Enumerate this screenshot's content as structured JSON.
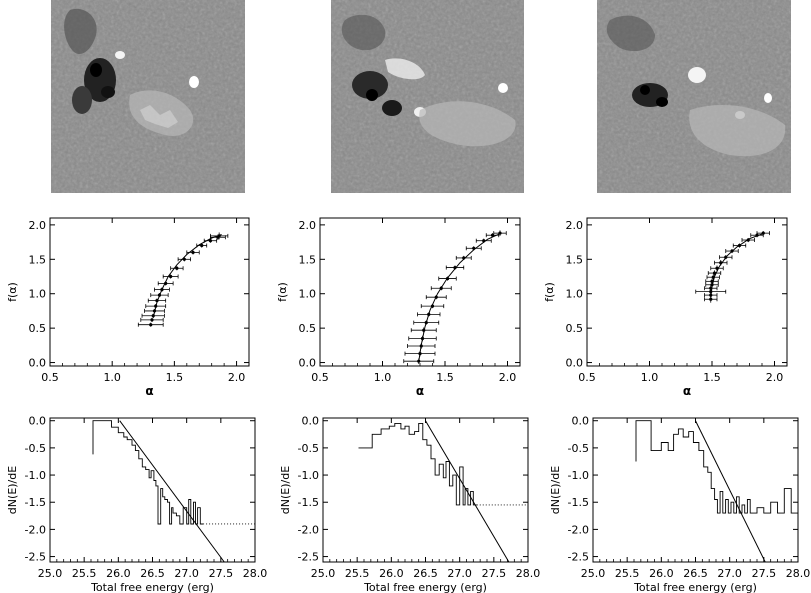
{
  "figure": {
    "column_count": 3,
    "magnetogram_colors": {
      "background": "#8a8a8a",
      "negative": "#0a0a0a",
      "positive": "#ffffff"
    }
  },
  "chart_data": [
    {
      "type": "scatter",
      "panel": "row2-col1",
      "xlabel": "α",
      "ylabel": "f(α)",
      "xlim": [
        0.5,
        2.1
      ],
      "ylim": [
        -0.05,
        2.1
      ],
      "xticks": [
        0.5,
        1.0,
        1.5,
        2.0
      ],
      "xtick_labels": [
        "0.5",
        "1.0",
        "1.5",
        "2.0"
      ],
      "yticks": [
        0.0,
        0.5,
        1.0,
        1.5,
        2.0
      ],
      "ytick_labels": [
        "0.0",
        "0.5",
        "1.0",
        "1.5",
        "2.0"
      ],
      "series": [
        {
          "x": [
            1.31,
            1.32,
            1.33,
            1.34,
            1.35,
            1.36,
            1.38,
            1.4,
            1.43,
            1.47,
            1.52,
            1.58,
            1.65,
            1.72,
            1.79,
            1.85,
            1.86
          ],
          "y": [
            0.55,
            0.62,
            0.68,
            0.75,
            0.82,
            0.9,
            0.98,
            1.06,
            1.15,
            1.25,
            1.37,
            1.5,
            1.6,
            1.7,
            1.77,
            1.82,
            1.84
          ],
          "xerr": [
            0.1,
            0.09,
            0.09,
            0.08,
            0.08,
            0.07,
            0.07,
            0.06,
            0.06,
            0.06,
            0.05,
            0.05,
            0.05,
            0.04,
            0.05,
            0.06,
            0.07
          ],
          "yerr": [
            0.03,
            0.03,
            0.03,
            0.03,
            0.03,
            0.03,
            0.03,
            0.03,
            0.03,
            0.03,
            0.03,
            0.03,
            0.03,
            0.03,
            0.03,
            0.04,
            0.05
          ]
        }
      ],
      "fit_curve": {
        "x": [
          1.33,
          1.36,
          1.4,
          1.45,
          1.52,
          1.6,
          1.7,
          1.8,
          1.88
        ],
        "y": [
          0.65,
          0.88,
          1.06,
          1.25,
          1.42,
          1.57,
          1.71,
          1.81,
          1.86
        ]
      }
    },
    {
      "type": "scatter",
      "panel": "row2-col2",
      "xlabel": "α",
      "ylabel": "f(α)",
      "xlim": [
        0.5,
        2.1
      ],
      "ylim": [
        -0.05,
        2.1
      ],
      "xticks": [
        0.5,
        1.0,
        1.5,
        2.0
      ],
      "xtick_labels": [
        "0.5",
        "1.0",
        "1.5",
        "2.0"
      ],
      "yticks": [
        0.0,
        0.5,
        1.0,
        1.5,
        2.0
      ],
      "ytick_labels": [
        "0.0",
        "0.5",
        "1.0",
        "1.5",
        "2.0"
      ],
      "series": [
        {
          "x": [
            1.29,
            1.3,
            1.31,
            1.32,
            1.33,
            1.35,
            1.37,
            1.4,
            1.43,
            1.47,
            1.52,
            1.58,
            1.65,
            1.73,
            1.81,
            1.88,
            1.94
          ],
          "y": [
            0.02,
            0.13,
            0.24,
            0.35,
            0.47,
            0.58,
            0.7,
            0.82,
            0.95,
            1.08,
            1.22,
            1.38,
            1.52,
            1.66,
            1.77,
            1.85,
            1.88
          ],
          "xerr": [
            0.12,
            0.12,
            0.11,
            0.11,
            0.1,
            0.1,
            0.09,
            0.09,
            0.08,
            0.08,
            0.07,
            0.07,
            0.06,
            0.06,
            0.06,
            0.05,
            0.05
          ],
          "yerr": [
            0.04,
            0.04,
            0.04,
            0.04,
            0.04,
            0.03,
            0.03,
            0.03,
            0.03,
            0.03,
            0.03,
            0.03,
            0.03,
            0.03,
            0.03,
            0.03,
            0.04
          ]
        }
      ],
      "fit_curve": {
        "x": [
          1.29,
          1.31,
          1.34,
          1.38,
          1.44,
          1.52,
          1.62,
          1.73,
          1.84,
          1.95
        ],
        "y": [
          0.02,
          0.26,
          0.52,
          0.76,
          1.0,
          1.23,
          1.45,
          1.64,
          1.79,
          1.88
        ]
      }
    },
    {
      "type": "scatter",
      "panel": "row2-col3",
      "xlabel": "α",
      "ylabel": "f(α)",
      "xlim": [
        0.5,
        2.1
      ],
      "ylim": [
        -0.05,
        2.1
      ],
      "xticks": [
        0.5,
        1.0,
        1.5,
        2.0
      ],
      "xtick_labels": [
        "0.5",
        "1.0",
        "1.5",
        "2.0"
      ],
      "yticks": [
        0.0,
        0.5,
        1.0,
        1.5,
        2.0
      ],
      "ytick_labels": [
        "0.0",
        "0.5",
        "1.0",
        "1.5",
        "2.0"
      ],
      "series": [
        {
          "x": [
            1.49,
            1.49,
            1.49,
            1.49,
            1.5,
            1.5,
            1.51,
            1.52,
            1.54,
            1.57,
            1.61,
            1.66,
            1.72,
            1.79,
            1.86,
            1.91
          ],
          "y": [
            0.92,
            0.98,
            1.03,
            1.08,
            1.13,
            1.18,
            1.24,
            1.3,
            1.37,
            1.45,
            1.53,
            1.62,
            1.7,
            1.78,
            1.85,
            1.88
          ],
          "xerr": [
            0.05,
            0.05,
            0.12,
            0.05,
            0.05,
            0.05,
            0.05,
            0.05,
            0.05,
            0.05,
            0.05,
            0.05,
            0.05,
            0.05,
            0.05,
            0.05
          ],
          "yerr": [
            0.05,
            0.05,
            0.05,
            0.05,
            0.04,
            0.04,
            0.04,
            0.04,
            0.04,
            0.04,
            0.03,
            0.03,
            0.03,
            0.03,
            0.03,
            0.03
          ]
        }
      ],
      "fit_curve": {
        "x": [
          1.49,
          1.5,
          1.52,
          1.56,
          1.62,
          1.7,
          1.8,
          1.92
        ],
        "y": [
          0.95,
          1.1,
          1.25,
          1.4,
          1.55,
          1.68,
          1.8,
          1.88
        ]
      }
    },
    {
      "type": "line",
      "panel": "row3-col1",
      "xlabel": "Total free energy (erg)",
      "ylabel": "dN(E)/dE",
      "xlim": [
        25.0,
        28.0
      ],
      "ylim": [
        -2.6,
        0.05
      ],
      "xticks": [
        25.0,
        25.5,
        26.0,
        26.5,
        27.0,
        27.5,
        28.0
      ],
      "xtick_labels": [
        "25.0",
        "25.5",
        "26.0",
        "26.5",
        "27.0",
        "27.5",
        "28.0"
      ],
      "yticks": [
        0.0,
        -0.5,
        -1.0,
        -1.5,
        -2.0,
        -2.5
      ],
      "ytick_labels": [
        "0.0",
        "-0.5",
        "-1.0",
        "-1.5",
        "-2.0",
        "-2.5"
      ],
      "histogram": {
        "x": [
          25.63,
          25.63,
          25.63,
          25.63,
          25.63,
          25.9,
          26.0,
          26.08,
          26.13,
          26.2,
          26.25,
          26.3,
          26.35,
          26.4,
          26.45,
          26.48,
          26.52,
          26.55,
          26.58,
          26.62,
          26.65,
          26.68,
          26.72,
          26.75,
          26.78,
          26.8,
          26.85,
          26.9,
          26.95,
          27.0,
          27.03,
          27.06,
          27.1,
          27.13,
          27.16,
          27.2,
          27.24
        ],
        "y": [
          -0.62,
          0.0,
          0.0,
          0.0,
          0.0,
          -0.12,
          -0.22,
          -0.3,
          -0.35,
          -0.45,
          -0.55,
          -0.7,
          -0.85,
          -0.9,
          -1.05,
          -0.92,
          -1.1,
          -1.2,
          -1.9,
          -1.25,
          -1.4,
          -1.45,
          -1.5,
          -1.9,
          -1.6,
          -1.7,
          -1.75,
          -1.9,
          -1.6,
          -1.9,
          -1.45,
          -1.9,
          -1.5,
          -1.9,
          -1.6,
          -1.9,
          -1.9
        ]
      },
      "dotted_level": {
        "x_start": 27.24,
        "x_end": 28.0,
        "y": -1.9
      },
      "fit_line": {
        "x": [
          26.02,
          27.55
        ],
        "y": [
          0.0,
          -2.6
        ]
      }
    },
    {
      "type": "line",
      "panel": "row3-col2",
      "xlabel": "Total free energy (erg)",
      "ylabel": "dN(E)/dE",
      "xlim": [
        25.0,
        28.0
      ],
      "ylim": [
        -2.6,
        0.05
      ],
      "xticks": [
        25.0,
        25.5,
        26.0,
        26.5,
        27.0,
        27.5,
        28.0
      ],
      "xtick_labels": [
        "25.0",
        "25.5",
        "26.0",
        "26.5",
        "27.0",
        "27.5",
        "28.0"
      ],
      "yticks": [
        0.0,
        -0.5,
        -1.0,
        -1.5,
        -2.0,
        -2.5
      ],
      "ytick_labels": [
        "0.0",
        "-0.5",
        "-1.0",
        "-1.5",
        "-2.0",
        "-2.5"
      ],
      "histogram": {
        "x": [
          25.52,
          25.72,
          25.85,
          25.97,
          26.05,
          26.14,
          26.2,
          26.26,
          26.34,
          26.4,
          26.46,
          26.52,
          26.58,
          26.64,
          26.7,
          26.76,
          26.8,
          26.85,
          26.9,
          26.95,
          27.0,
          27.05,
          27.08,
          27.12,
          27.16,
          27.2,
          27.25
        ],
        "y": [
          -0.5,
          -0.25,
          -0.15,
          -0.1,
          -0.05,
          -0.15,
          -0.1,
          -0.25,
          -0.2,
          -0.05,
          -0.35,
          -0.45,
          -0.7,
          -1.0,
          -0.8,
          -1.05,
          -0.75,
          -1.2,
          -1.0,
          -1.55,
          -0.85,
          -1.55,
          -1.25,
          -1.55,
          -1.3,
          -1.55,
          -1.55
        ]
      },
      "dotted_level": {
        "x_start": 27.25,
        "x_end": 28.0,
        "y": -1.55
      },
      "fit_line": {
        "x": [
          26.5,
          27.72
        ],
        "y": [
          0.0,
          -2.6
        ]
      }
    },
    {
      "type": "line",
      "panel": "row3-col3",
      "xlabel": "Total free energy (erg)",
      "ylabel": "dN(E)/dE",
      "xlim": [
        25.0,
        28.0
      ],
      "ylim": [
        -2.6,
        0.05
      ],
      "xticks": [
        25.0,
        25.5,
        26.0,
        26.5,
        27.0,
        27.5,
        28.0
      ],
      "xtick_labels": [
        "25.0",
        "25.5",
        "26.0",
        "26.5",
        "27.0",
        "27.5",
        "28.0"
      ],
      "yticks": [
        0.0,
        -0.5,
        -1.0,
        -1.5,
        -2.0,
        -2.5
      ],
      "ytick_labels": [
        "0.0",
        "-0.5",
        "-1.0",
        "-1.5",
        "-2.0",
        "-2.5"
      ],
      "histogram": {
        "x": [
          25.63,
          25.63,
          25.63,
          25.63,
          25.85,
          26.0,
          26.1,
          26.18,
          26.25,
          26.32,
          26.4,
          26.47,
          26.55,
          26.62,
          26.68,
          26.73,
          26.78,
          26.82,
          26.86,
          26.9,
          26.94,
          26.98,
          27.02,
          27.06,
          27.1,
          27.14,
          27.18,
          27.22,
          27.26,
          27.3,
          27.4,
          27.5,
          27.6,
          27.7,
          27.8,
          27.9,
          28.0
        ],
        "y": [
          -0.75,
          0.0,
          0.0,
          0.0,
          -0.55,
          -0.4,
          -0.55,
          -0.25,
          -0.15,
          -0.3,
          -0.2,
          -0.4,
          -0.55,
          -0.85,
          -0.95,
          -1.25,
          -1.45,
          -1.7,
          -1.3,
          -1.7,
          -1.45,
          -1.7,
          -1.5,
          -1.7,
          -1.4,
          -1.7,
          -1.55,
          -1.7,
          -1.45,
          -1.7,
          -1.6,
          -1.7,
          -1.5,
          -1.7,
          -1.25,
          -1.7,
          -1.7
        ]
      },
      "dotted_level": null,
      "fit_line": {
        "x": [
          26.5,
          27.52
        ],
        "y": [
          0.0,
          -2.6
        ]
      }
    }
  ]
}
